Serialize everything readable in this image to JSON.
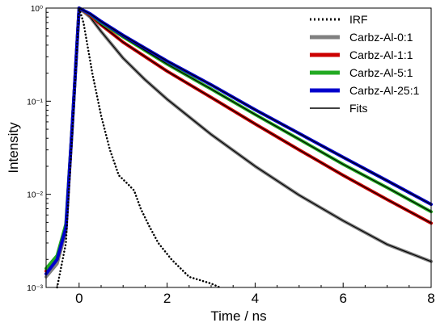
{
  "chart_data": {
    "type": "line",
    "xlabel": "Time / ns",
    "ylabel": "Intensity",
    "xlim": [
      -0.75,
      8
    ],
    "ylim": [
      0.001,
      1.0
    ],
    "yscale": "log",
    "x_ticks": [
      0,
      2,
      4,
      6,
      8
    ],
    "y_ticks": [
      {
        "value": 0.001,
        "label": "10⁻³"
      },
      {
        "value": 0.01,
        "label": "10⁻²"
      },
      {
        "value": 0.1,
        "label": "10⁻¹"
      },
      {
        "value": 1,
        "label": "10⁰"
      }
    ],
    "legend_position": "top-right",
    "grid": false,
    "series": [
      {
        "name": "IRF",
        "color": "#000000",
        "style": "dotted",
        "points": [
          [
            -0.5,
            0.001
          ],
          [
            -0.3,
            0.003
          ],
          [
            -0.15,
            0.05
          ],
          [
            0,
            1.0
          ],
          [
            0.1,
            0.7
          ],
          [
            0.3,
            0.2
          ],
          [
            0.5,
            0.07
          ],
          [
            0.7,
            0.03
          ],
          [
            0.9,
            0.016
          ],
          [
            1.1,
            0.013
          ],
          [
            1.25,
            0.011
          ],
          [
            1.4,
            0.007
          ],
          [
            1.6,
            0.0045
          ],
          [
            1.8,
            0.003
          ],
          [
            2.1,
            0.002
          ],
          [
            2.5,
            0.0013
          ],
          [
            3.0,
            0.0011
          ],
          [
            3.2,
            0.001
          ]
        ]
      },
      {
        "name": "Carbz-Al-0:1",
        "color": "#808080",
        "style": "solid",
        "points": [
          [
            -0.75,
            0.0013
          ],
          [
            -0.5,
            0.0018
          ],
          [
            -0.3,
            0.004
          ],
          [
            -0.15,
            0.06
          ],
          [
            0,
            1.0
          ],
          [
            0.25,
            0.8
          ],
          [
            0.5,
            0.56
          ],
          [
            1,
            0.29
          ],
          [
            1.5,
            0.17
          ],
          [
            2,
            0.105
          ],
          [
            3,
            0.044
          ],
          [
            4,
            0.02
          ],
          [
            5,
            0.0098
          ],
          [
            6,
            0.0052
          ],
          [
            7,
            0.0029
          ],
          [
            8,
            0.0019
          ]
        ]
      },
      {
        "name": "Carbz-Al-1:1",
        "color": "#cc0000",
        "style": "solid",
        "points": [
          [
            -0.75,
            0.0015
          ],
          [
            -0.5,
            0.002
          ],
          [
            -0.3,
            0.0045
          ],
          [
            -0.15,
            0.06
          ],
          [
            0,
            1.0
          ],
          [
            0.25,
            0.84
          ],
          [
            0.5,
            0.66
          ],
          [
            1,
            0.43
          ],
          [
            2,
            0.21
          ],
          [
            3,
            0.11
          ],
          [
            4,
            0.057
          ],
          [
            5,
            0.03
          ],
          [
            6,
            0.016
          ],
          [
            7,
            0.0088
          ],
          [
            8,
            0.0049
          ]
        ]
      },
      {
        "name": "Carbz-Al-5:1",
        "color": "#22aa22",
        "style": "solid",
        "points": [
          [
            -0.75,
            0.0016
          ],
          [
            -0.5,
            0.0022
          ],
          [
            -0.3,
            0.0048
          ],
          [
            -0.15,
            0.06
          ],
          [
            0,
            1.0
          ],
          [
            0.25,
            0.86
          ],
          [
            0.5,
            0.7
          ],
          [
            1,
            0.49
          ],
          [
            2,
            0.25
          ],
          [
            3,
            0.135
          ],
          [
            4,
            0.072
          ],
          [
            5,
            0.039
          ],
          [
            6,
            0.021
          ],
          [
            7,
            0.0118
          ],
          [
            8,
            0.0065
          ]
        ]
      },
      {
        "name": "Carbz-Al-25:1",
        "color": "#0000cc",
        "style": "solid",
        "points": [
          [
            -0.75,
            0.0014
          ],
          [
            -0.5,
            0.002
          ],
          [
            -0.3,
            0.0044
          ],
          [
            -0.15,
            0.06
          ],
          [
            0,
            1.0
          ],
          [
            0.25,
            0.87
          ],
          [
            0.5,
            0.72
          ],
          [
            1,
            0.51
          ],
          [
            2,
            0.27
          ],
          [
            3,
            0.15
          ],
          [
            4,
            0.081
          ],
          [
            5,
            0.045
          ],
          [
            6,
            0.025
          ],
          [
            7,
            0.014
          ],
          [
            8,
            0.0078
          ]
        ]
      },
      {
        "name": "Fits",
        "color": "#000000",
        "style": "solid",
        "points": []
      }
    ]
  }
}
